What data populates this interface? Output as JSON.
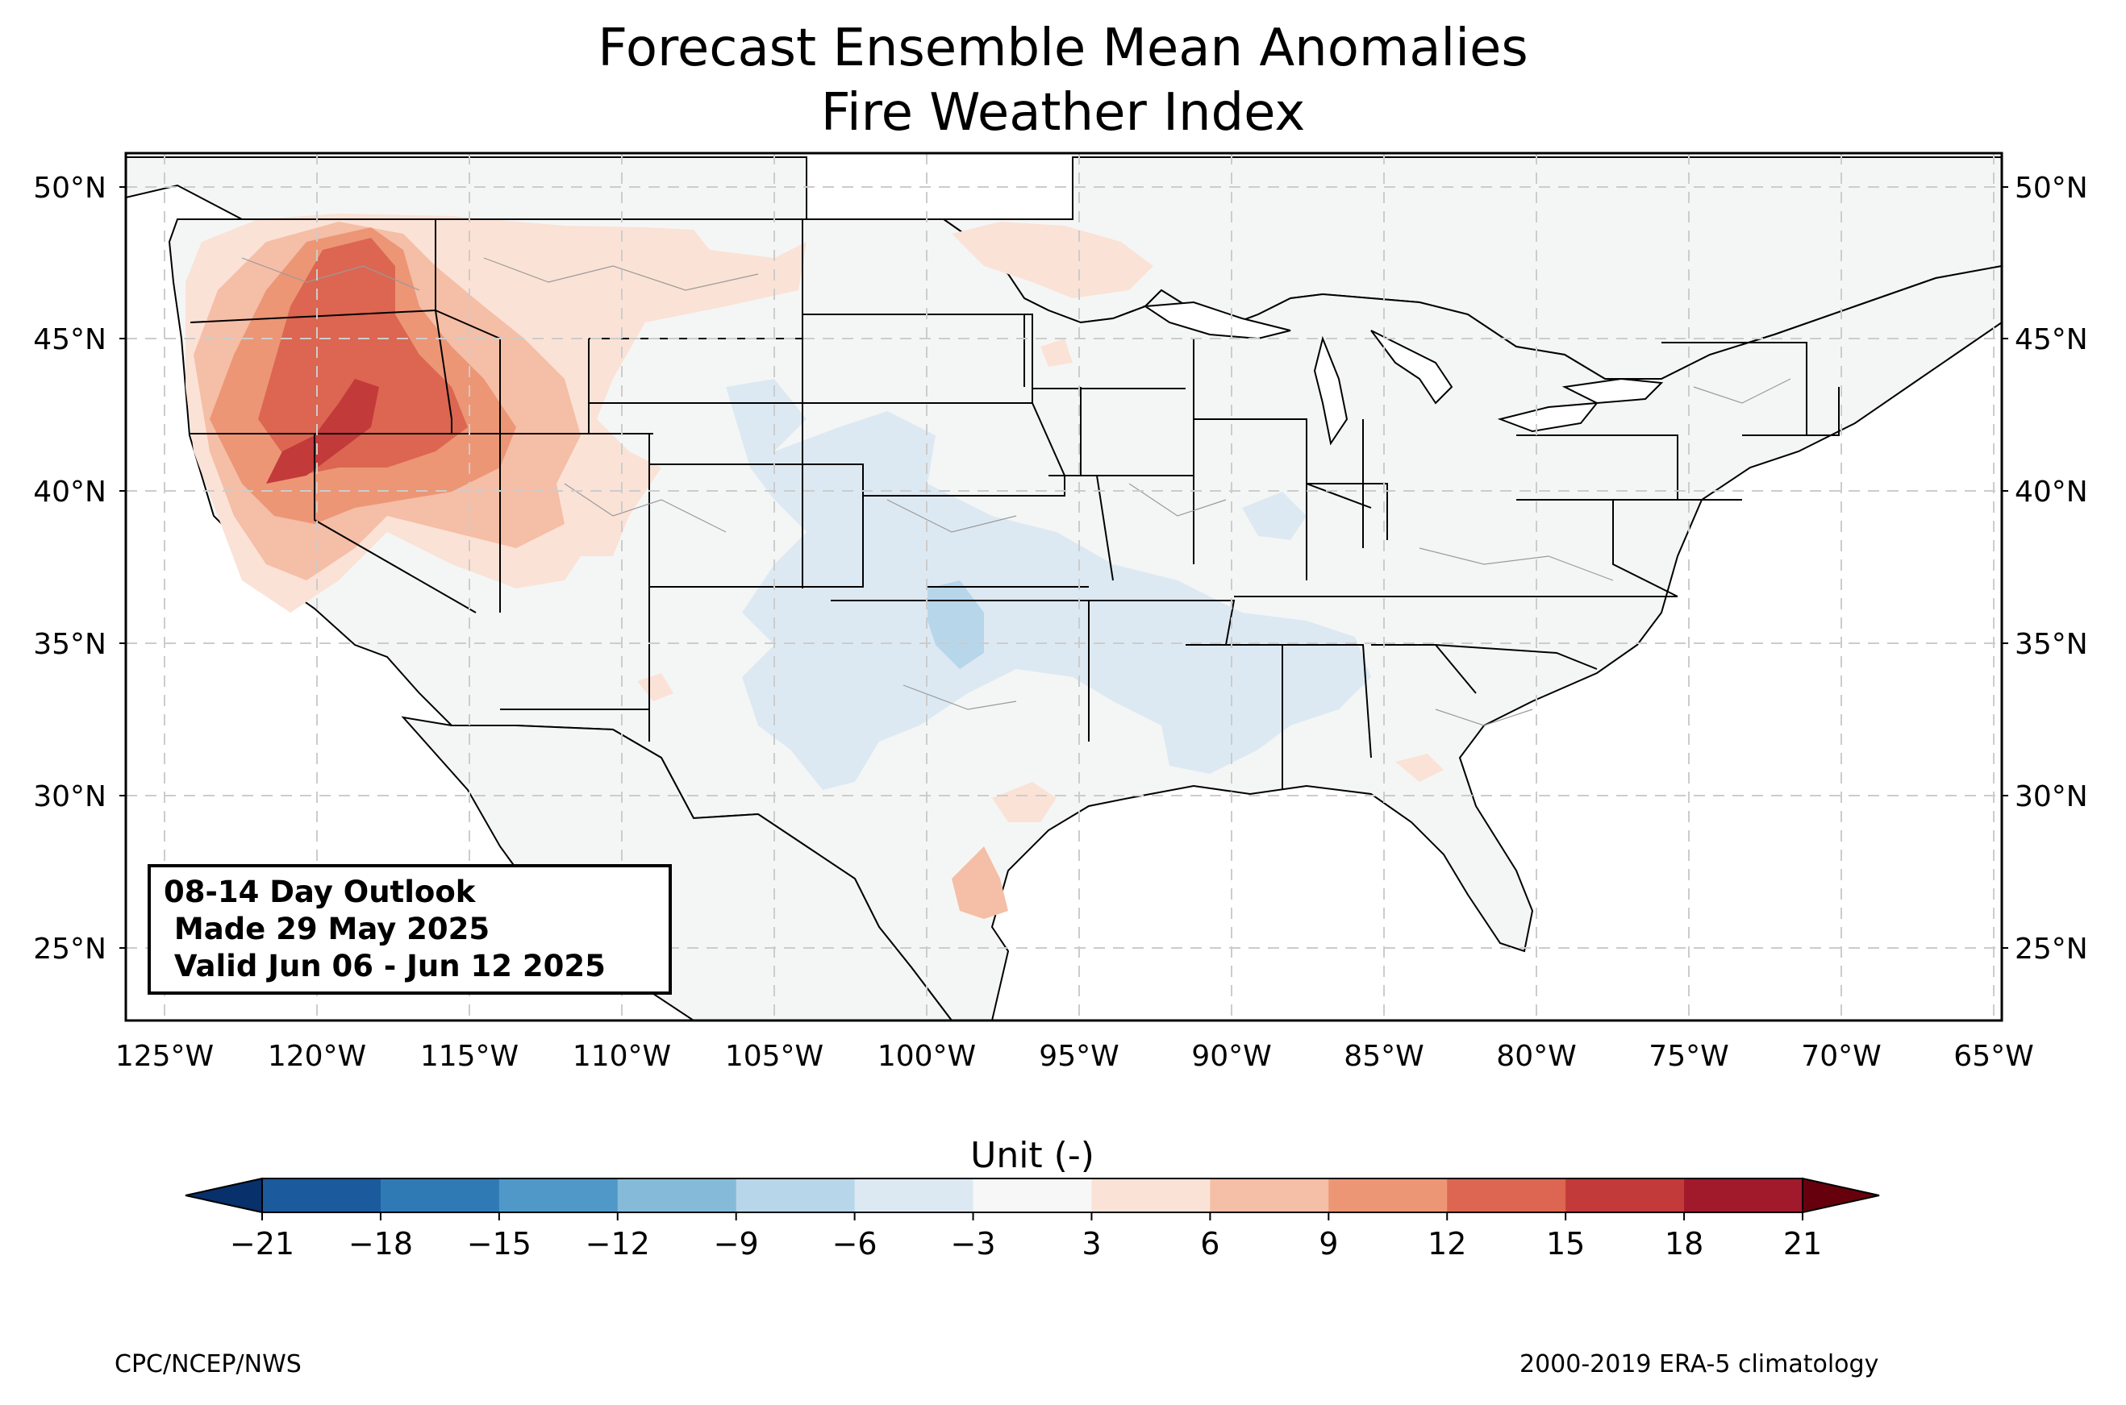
{
  "title_line1": "Forecast Ensemble Mean Anomalies",
  "title_line2": "Fire Weather Index",
  "latitude_labels": [
    "50°N",
    "45°N",
    "40°N",
    "35°N",
    "30°N",
    "25°N"
  ],
  "longitude_labels": [
    "125°W",
    "120°W",
    "115°W",
    "110°W",
    "105°W",
    "100°W",
    "95°W",
    "90°W",
    "85°W",
    "80°W",
    "75°W",
    "70°W",
    "65°W"
  ],
  "outlook_box": {
    "line1": "08-14 Day Outlook",
    "line2": " Made 29 May 2025",
    "line3": " Valid Jun 06 - Jun 12 2025"
  },
  "colorbar": {
    "label": "Unit (-)",
    "ticks": [
      "−21",
      "−18",
      "−15",
      "−12",
      "−9",
      "−6",
      "−3",
      "3",
      "6",
      "9",
      "12",
      "15",
      "18",
      "21"
    ],
    "colors": [
      "#1b5a9c",
      "#2f79b5",
      "#4f98c7",
      "#86bad9",
      "#b8d6e9",
      "#dde9f2",
      "#f7f7f7",
      "#fbe2d6",
      "#f5bea6",
      "#ec9676",
      "#dc6651",
      "#c33a3a",
      "#a01a2c"
    ],
    "extend_low_color": "#08306b",
    "extend_high_color": "#67000d"
  },
  "footer_left": "CPC/NCEP/NWS",
  "footer_right": "2000-2019 ERA-5 climatology",
  "colors": {
    "land": "#f4f6f5",
    "positive_anomaly": "#dc6651",
    "negative_anomaly": "#b8d6e9"
  }
}
